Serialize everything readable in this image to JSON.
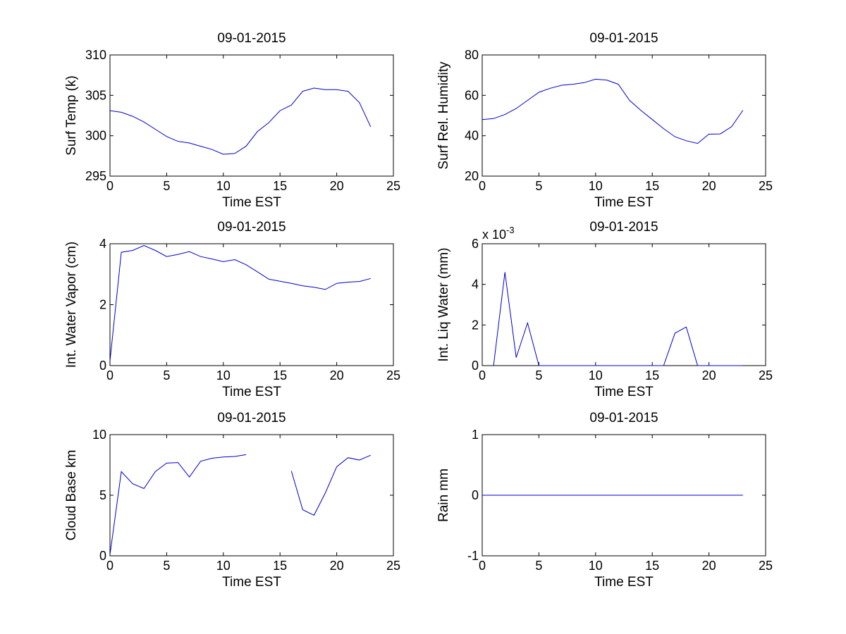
{
  "chart_data": [
    {
      "id": "surf-temp",
      "type": "line",
      "title": "09-01-2015",
      "xlabel": "Time EST",
      "ylabel": "Surf Temp (k)",
      "xlim": [
        0,
        25
      ],
      "ylim": [
        295,
        310
      ],
      "xticks": [
        0,
        5,
        10,
        15,
        20,
        25
      ],
      "yticks": [
        295,
        300,
        305,
        310
      ],
      "ytick_labels": [
        "295",
        "300",
        "305",
        "310"
      ],
      "grid": false,
      "line_color": "#0000cc",
      "series": [
        {
          "x": [
            0,
            1,
            2,
            3,
            4,
            5,
            6,
            7,
            8,
            9,
            10,
            11,
            12,
            13,
            14,
            15,
            16,
            17,
            18,
            19,
            20,
            21,
            22,
            23
          ],
          "y": [
            303.1,
            302.9,
            302.4,
            301.7,
            300.8,
            299.9,
            299.3,
            299.1,
            298.7,
            298.3,
            297.7,
            297.8,
            298.7,
            300.5,
            301.6,
            303.1,
            303.8,
            305.5,
            305.9,
            305.7,
            305.7,
            305.5,
            304.1,
            301.1
          ]
        }
      ]
    },
    {
      "id": "surf-rel-humidity",
      "type": "line",
      "title": "09-01-2015",
      "xlabel": "Time EST",
      "ylabel": "Surf Rel. Humidity",
      "xlim": [
        0,
        25
      ],
      "ylim": [
        20,
        80
      ],
      "xticks": [
        0,
        5,
        10,
        15,
        20,
        25
      ],
      "yticks": [
        20,
        40,
        60,
        80
      ],
      "ytick_labels": [
        "20",
        "40",
        "60",
        "80"
      ],
      "grid": false,
      "line_color": "#0000cc",
      "series": [
        {
          "x": [
            0,
            1,
            2,
            3,
            4,
            5,
            6,
            7,
            8,
            9,
            10,
            11,
            12,
            13,
            14,
            15,
            16,
            17,
            18,
            19,
            20,
            21,
            22,
            23
          ],
          "y": [
            48,
            48.5,
            50.5,
            53.5,
            57.5,
            61.5,
            63.5,
            65,
            65.5,
            66.3,
            68,
            67.5,
            65.5,
            57.5,
            52.5,
            48,
            43.5,
            39.5,
            37.5,
            36.2,
            40.8,
            40.9,
            44.5,
            52.6
          ]
        }
      ]
    },
    {
      "id": "int-water-vapor",
      "type": "line",
      "title": "09-01-2015",
      "xlabel": "Time EST",
      "ylabel": "Int. Water Vapor (cm)",
      "xlim": [
        0,
        25
      ],
      "ylim": [
        0,
        4
      ],
      "xticks": [
        0,
        5,
        10,
        15,
        20,
        25
      ],
      "yticks": [
        0,
        2,
        4
      ],
      "ytick_labels": [
        "0",
        "2",
        "4"
      ],
      "grid": false,
      "line_color": "#0000cc",
      "series": [
        {
          "x": [
            0,
            1,
            2,
            3,
            4,
            5,
            6,
            7,
            8,
            9,
            10,
            11,
            12,
            13,
            14,
            15,
            16,
            17,
            18,
            19,
            20,
            21,
            22,
            23
          ],
          "y": [
            0.15,
            3.72,
            3.78,
            3.94,
            3.78,
            3.58,
            3.65,
            3.74,
            3.58,
            3.5,
            3.41,
            3.48,
            3.31,
            3.08,
            2.84,
            2.77,
            2.7,
            2.62,
            2.57,
            2.5,
            2.7,
            2.74,
            2.76,
            2.86
          ]
        }
      ]
    },
    {
      "id": "int-liq-water",
      "type": "line",
      "title": "09-01-2015",
      "xlabel": "Time EST",
      "ylabel": "Int. Liq Water (mm)",
      "xlim": [
        0,
        25
      ],
      "ylim": [
        0,
        0.006
      ],
      "xticks": [
        0,
        5,
        10,
        15,
        20,
        25
      ],
      "yticks": [
        0,
        0.002,
        0.004,
        0.006
      ],
      "ytick_labels": [
        "0",
        "2",
        "4",
        "6"
      ],
      "exponent_label": "x 10",
      "exponent_power": "-3",
      "grid": false,
      "line_color": "#0000cc",
      "series": [
        {
          "x": [
            1,
            2,
            3,
            4,
            5,
            6,
            7,
            8,
            9,
            10,
            11,
            12,
            13,
            14,
            15,
            16,
            17,
            18,
            19,
            20,
            21,
            22,
            23
          ],
          "y": [
            0,
            0.0046,
            0.0004,
            0.0021,
            0,
            0,
            0,
            0,
            0,
            0,
            0,
            0,
            0,
            0,
            0,
            0,
            0.0016,
            0.0019,
            0,
            0,
            0,
            0,
            0
          ]
        }
      ]
    },
    {
      "id": "cloud-base",
      "type": "line",
      "title": "09-01-2015",
      "xlabel": "Time EST",
      "ylabel": "Cloud Base km",
      "xlim": [
        0,
        25
      ],
      "ylim": [
        0,
        10
      ],
      "xticks": [
        0,
        5,
        10,
        15,
        20,
        25
      ],
      "yticks": [
        0,
        5,
        10
      ],
      "ytick_labels": [
        "0",
        "5",
        "10"
      ],
      "grid": false,
      "line_color": "#0000cc",
      "series": [
        {
          "x": [
            0,
            1,
            2,
            3,
            4,
            5,
            6,
            7,
            8,
            9,
            10,
            11,
            12
          ],
          "y": [
            0.1,
            6.95,
            5.95,
            5.55,
            6.95,
            7.65,
            7.7,
            6.5,
            7.8,
            8.05,
            8.15,
            8.2,
            8.35
          ]
        },
        {
          "x": [
            16,
            17,
            18,
            19,
            20,
            21,
            22,
            23
          ],
          "y": [
            7.0,
            3.8,
            3.35,
            5.2,
            7.35,
            8.1,
            7.9,
            8.3
          ]
        }
      ]
    },
    {
      "id": "rain",
      "type": "line",
      "title": "09-01-2015",
      "xlabel": "Time EST",
      "ylabel": "Rain mm",
      "xlim": [
        0,
        25
      ],
      "ylim": [
        -1,
        1
      ],
      "xticks": [
        0,
        5,
        10,
        15,
        20,
        25
      ],
      "yticks": [
        -1,
        0,
        1
      ],
      "ytick_labels": [
        "-1",
        "0",
        "1"
      ],
      "grid": false,
      "line_color": "#0000cc",
      "series": [
        {
          "x": [
            0,
            1,
            2,
            3,
            4,
            5,
            6,
            7,
            8,
            9,
            10,
            11,
            12,
            13,
            14,
            15,
            16,
            17,
            18,
            19,
            20,
            21,
            22,
            23
          ],
          "y": [
            0,
            0,
            0,
            0,
            0,
            0,
            0,
            0,
            0,
            0,
            0,
            0,
            0,
            0,
            0,
            0,
            0,
            0,
            0,
            0,
            0,
            0,
            0,
            0
          ]
        }
      ]
    }
  ]
}
